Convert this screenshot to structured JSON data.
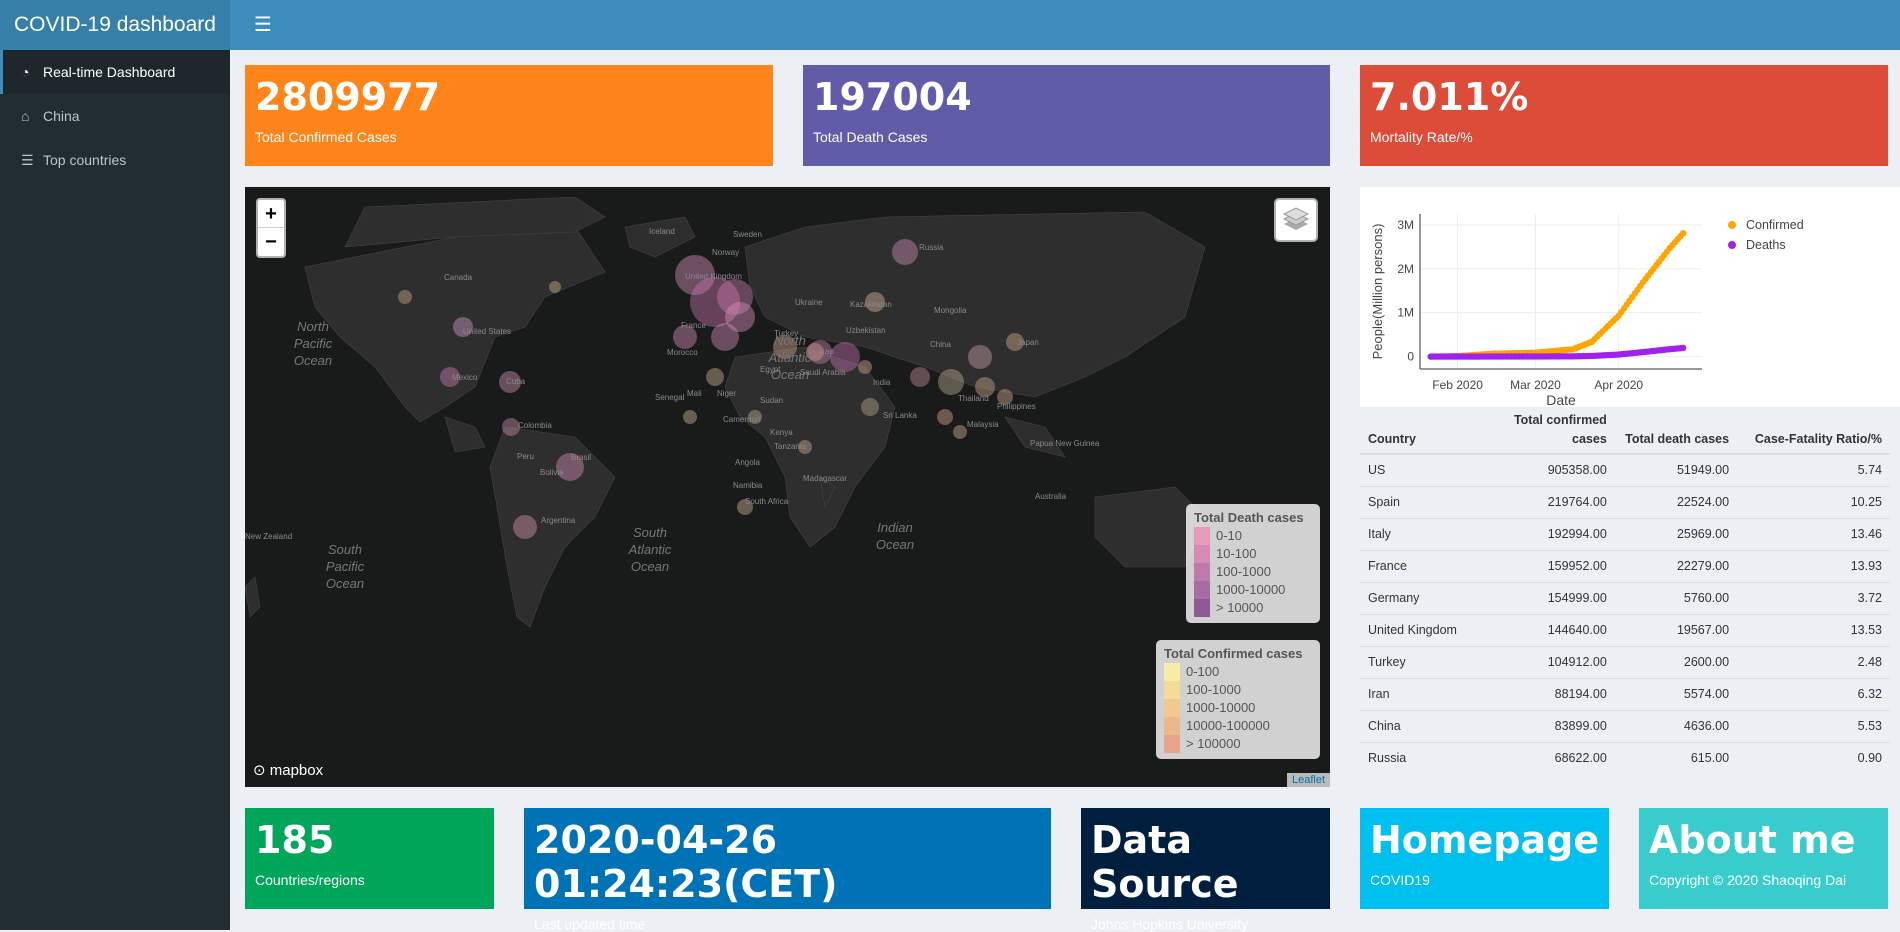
{
  "app": {
    "title": "COVID-19 dashboard"
  },
  "sidebar": {
    "items": [
      {
        "label": "Real-time Dashboard",
        "icon": "dashboard-icon"
      },
      {
        "label": "China",
        "icon": "home-icon"
      },
      {
        "label": "Top countries",
        "icon": "list-icon"
      }
    ]
  },
  "top_boxes": [
    {
      "value": "2809977",
      "label": "Total Confirmed Cases",
      "color": "#ff851b"
    },
    {
      "value": "197004",
      "label": "Total Death Cases",
      "color": "#605ca8"
    },
    {
      "value": "7.011%",
      "label": "Mortality Rate/%",
      "color": "#dd4b39"
    }
  ],
  "map": {
    "zoom_in": "+",
    "zoom_out": "−",
    "labels": [
      "North Pacific Ocean",
      "North Atlantic Ocean",
      "South Pacific Ocean",
      "South Atlantic Ocean",
      "Indian Ocean",
      "Canada",
      "United States",
      "Mexico",
      "Cuba",
      "Colombia",
      "Peru",
      "Bolivia",
      "Brasil",
      "Argentina",
      "Iceland",
      "Sweden",
      "Norway",
      "Russia",
      "Kazakhstan",
      "Mongolia",
      "Uzbekistan",
      "China",
      "Japan",
      "Turkey",
      "Iran",
      "India",
      "Egypt",
      "Saudi Arabia",
      "Mali",
      "Niger",
      "Senegal",
      "Sudan",
      "Kenya",
      "Tanzania",
      "Angola",
      "Namibia",
      "South Africa",
      "Madagascar",
      "Sri Lanka",
      "Thailand",
      "Philippines",
      "Malaysia",
      "Papua New Guinea",
      "Australia",
      "New Zealand",
      "Morocco",
      "Ukraine",
      "Cameroon",
      "United Kingdom",
      "France"
    ],
    "legend_death": {
      "title": "Total Death cases",
      "items": [
        "0-10",
        "10-100",
        "100-1000",
        "1000-10000",
        "> 10000"
      ],
      "colors": [
        "#e79bbc",
        "#d889b4",
        "#c079ac",
        "#a86ba3",
        "#8e5a95"
      ]
    },
    "legend_confirmed": {
      "title": "Total Confirmed cases",
      "items": [
        "0-100",
        "100-1000",
        "1000-10000",
        "10000-100000",
        "> 100000"
      ],
      "colors": [
        "#f5eda5",
        "#f2dc98",
        "#efca90",
        "#ebb78d",
        "#e8a38c"
      ]
    },
    "mapbox": "mapbox",
    "attribution": "Leaflet"
  },
  "chart_data": {
    "type": "scatter",
    "xlabel": "Date",
    "ylabel": "People(Million persons)",
    "xticks": [
      "Feb 2020",
      "Mar 2020",
      "Apr 2020"
    ],
    "yticks": [
      "0",
      "1M",
      "2M",
      "3M"
    ],
    "ylim": [
      0,
      3000000
    ],
    "xlim": [
      "2020-01-18",
      "2020-05-02"
    ],
    "legend": "top-right",
    "series": [
      {
        "name": "Confirmed",
        "color": "#ffa500",
        "points": [
          [
            "2020-01-22",
            555
          ],
          [
            "2020-02-01",
            12000
          ],
          [
            "2020-02-15",
            69000
          ],
          [
            "2020-03-01",
            88000
          ],
          [
            "2020-03-15",
            167000
          ],
          [
            "2020-03-22",
            337000
          ],
          [
            "2020-04-01",
            932000
          ],
          [
            "2020-04-10",
            1690000
          ],
          [
            "2020-04-20",
            2470000
          ],
          [
            "2020-04-25",
            2809977
          ]
        ]
      },
      {
        "name": "Deaths",
        "color": "#a020f0",
        "points": [
          [
            "2020-01-22",
            17
          ],
          [
            "2020-02-01",
            259
          ],
          [
            "2020-02-15",
            1660
          ],
          [
            "2020-03-01",
            2990
          ],
          [
            "2020-03-15",
            6440
          ],
          [
            "2020-03-22",
            14600
          ],
          [
            "2020-04-01",
            47200
          ],
          [
            "2020-04-10",
            102500
          ],
          [
            "2020-04-20",
            169000
          ],
          [
            "2020-04-25",
            197004
          ]
        ]
      }
    ]
  },
  "table": {
    "headers": [
      "Country",
      "Total confirmed cases",
      "Total death cases",
      "Case-Fatality Ratio/%"
    ],
    "rows": [
      [
        "US",
        "905358.00",
        "51949.00",
        "5.74"
      ],
      [
        "Spain",
        "219764.00",
        "22524.00",
        "10.25"
      ],
      [
        "Italy",
        "192994.00",
        "25969.00",
        "13.46"
      ],
      [
        "France",
        "159952.00",
        "22279.00",
        "13.93"
      ],
      [
        "Germany",
        "154999.00",
        "5760.00",
        "3.72"
      ],
      [
        "United Kingdom",
        "144640.00",
        "19567.00",
        "13.53"
      ],
      [
        "Turkey",
        "104912.00",
        "2600.00",
        "2.48"
      ],
      [
        "Iran",
        "88194.00",
        "5574.00",
        "6.32"
      ],
      [
        "China",
        "83899.00",
        "4636.00",
        "5.53"
      ],
      [
        "Russia",
        "68622.00",
        "615.00",
        "0.90"
      ]
    ]
  },
  "bottom_boxes": [
    {
      "value": "185",
      "label": "Countries/regions",
      "color": "#00a65a"
    },
    {
      "value": "2020-04-26 01:24:23(CET)",
      "label": "Last updated time",
      "color": "#0073b7"
    },
    {
      "value": "Data Source",
      "label": "Johns Hopkins University",
      "color": "#001f3f"
    },
    {
      "value": "Homepage",
      "label": "COVID19",
      "color": "#00c0ef"
    },
    {
      "value": "About me",
      "label": "Copyright © 2020 Shaoqing Dai",
      "color": "#39cccc"
    }
  ]
}
